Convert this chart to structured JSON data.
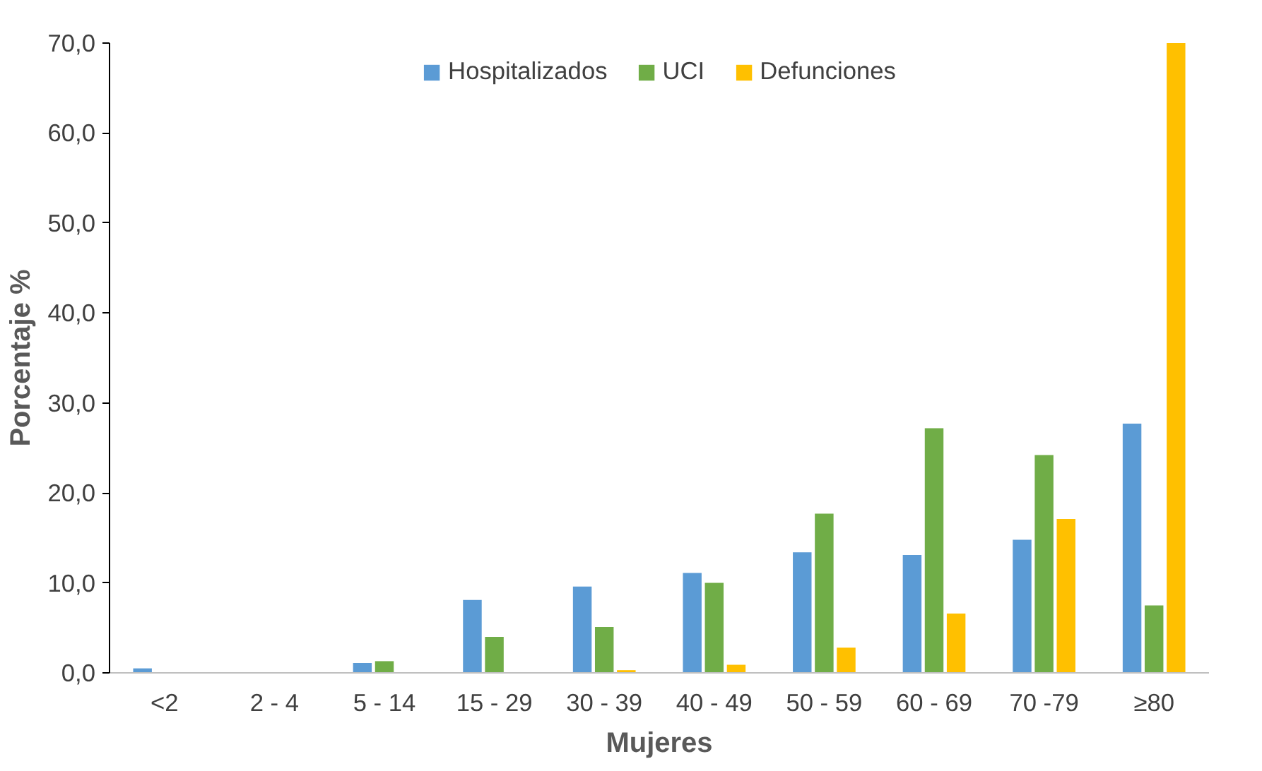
{
  "chart_data": {
    "type": "bar",
    "xlabel": "Mujeres",
    "ylabel": "Porcentaje %",
    "categories": [
      "<2",
      "2 - 4",
      "5 - 14",
      "15 - 29",
      "30 - 39",
      "40 - 49",
      "50 - 59",
      "60 - 69",
      "70 -79",
      "≥80"
    ],
    "series": [
      {
        "name": "Hospitalizados",
        "color": "#5b9bd5",
        "values": [
          0.5,
          0,
          1.1,
          8.1,
          9.6,
          11.1,
          13.4,
          13.1,
          14.8,
          27.7
        ]
      },
      {
        "name": "UCI",
        "color": "#70ad47",
        "values": [
          0,
          0,
          1.3,
          4.0,
          5.1,
          10.0,
          17.7,
          27.2,
          24.2,
          7.5
        ]
      },
      {
        "name": "Defunciones",
        "color": "#ffc000",
        "values": [
          0,
          0,
          0,
          0,
          0.3,
          0.9,
          2.8,
          6.6,
          17.1,
          70.0
        ]
      }
    ],
    "ylim": [
      0,
      70
    ],
    "yticks": [
      {
        "value": 0,
        "label": "0,0"
      },
      {
        "value": 10,
        "label": "10,0"
      },
      {
        "value": 20,
        "label": "20,0"
      },
      {
        "value": 30,
        "label": "30,0"
      },
      {
        "value": 40,
        "label": "40,0"
      },
      {
        "value": 50,
        "label": "50,0"
      },
      {
        "value": 60,
        "label": "60,0"
      },
      {
        "value": 70,
        "label": "70,0"
      }
    ],
    "grid": false,
    "legend": "top"
  }
}
